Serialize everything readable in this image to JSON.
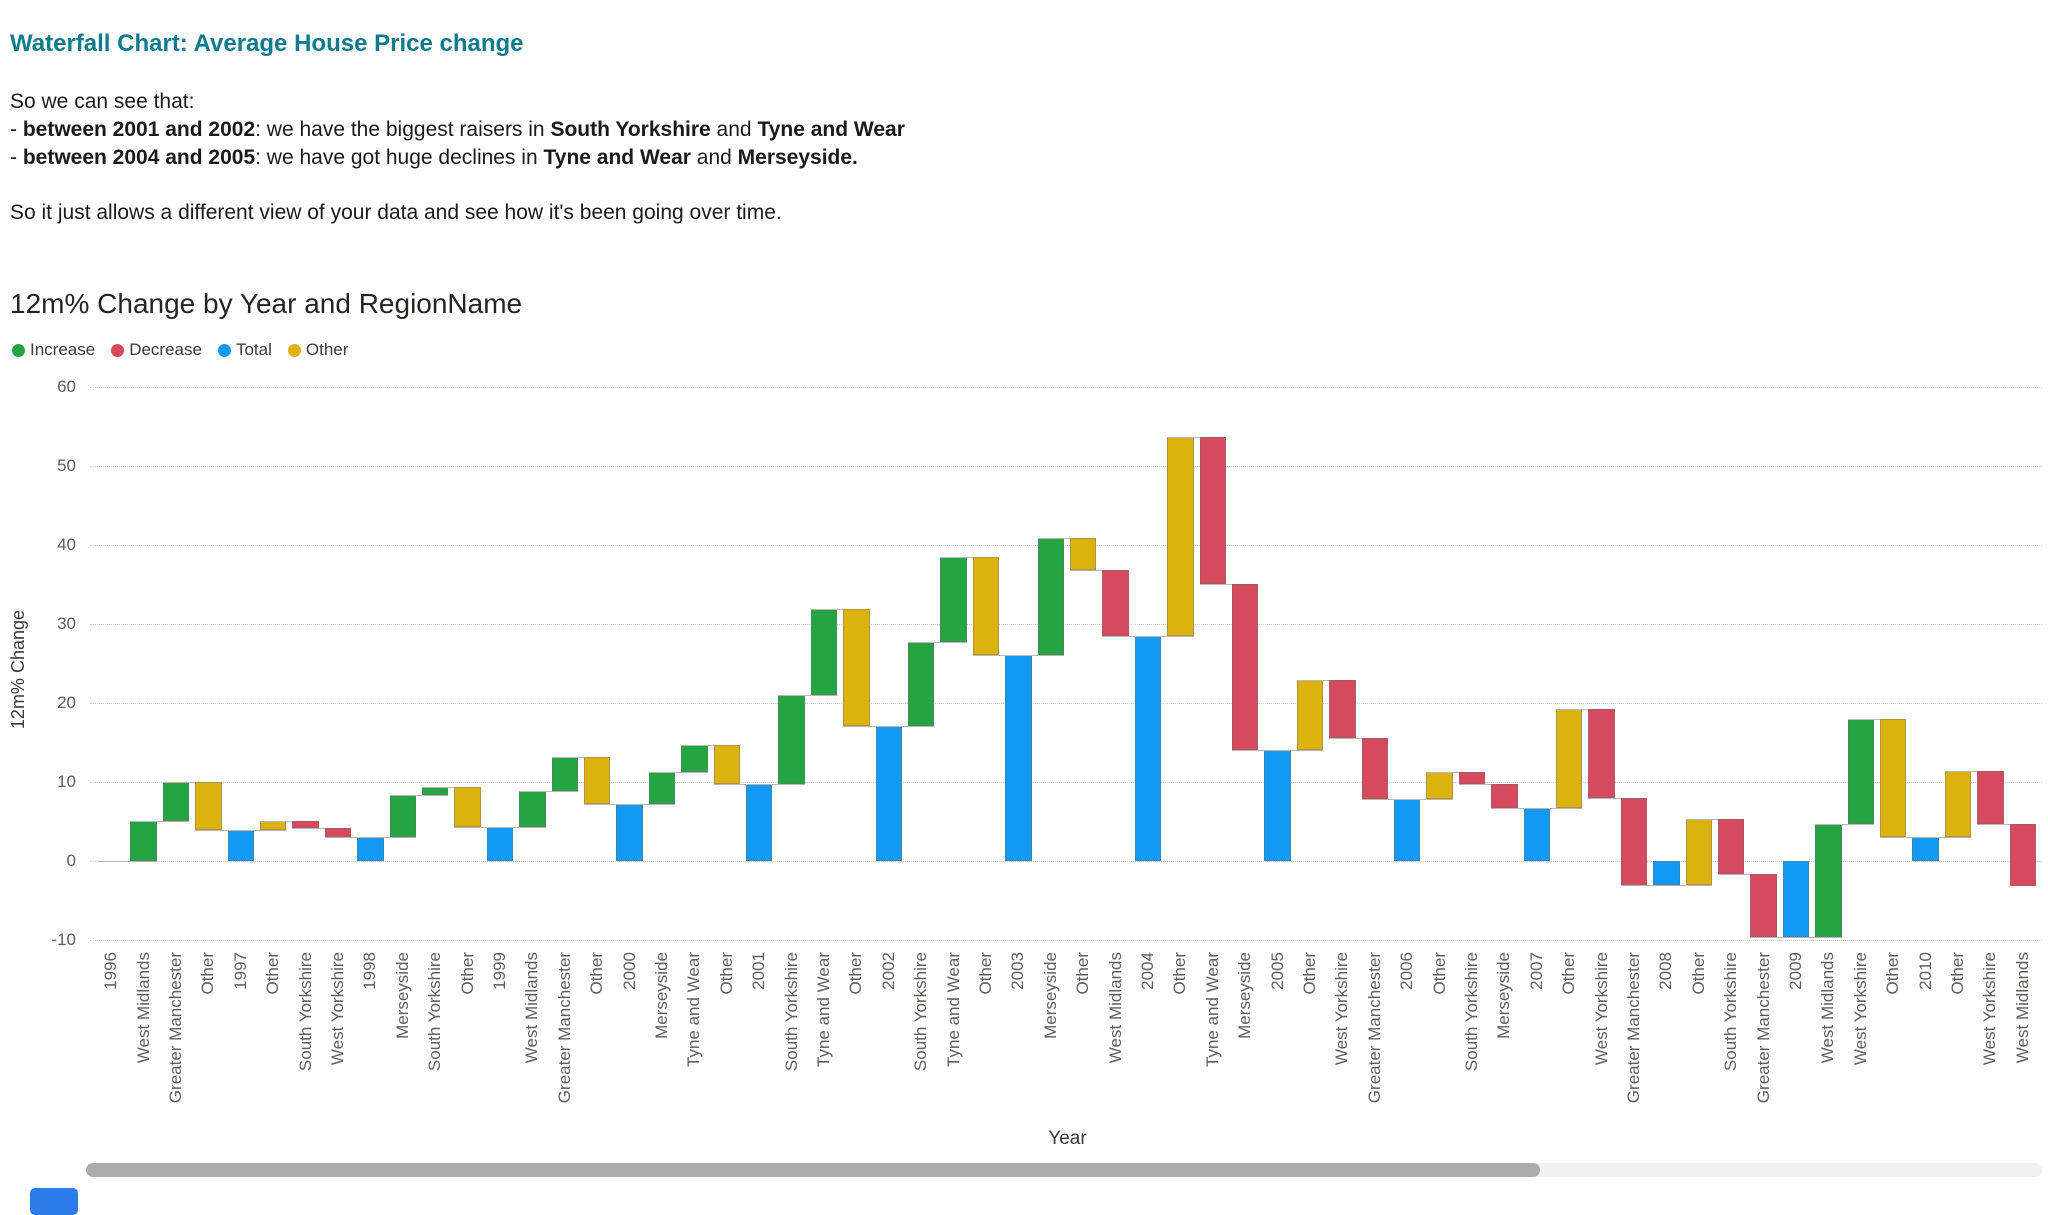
{
  "header": {
    "title": "Waterfall Chart: Average House Price change",
    "intro": "So we can see that:",
    "bullets": [
      [
        {
          "text": "- ",
          "bold": false
        },
        {
          "text": "between 2001 and 2002",
          "bold": true
        },
        {
          "text": ": we have the biggest raisers in ",
          "bold": false
        },
        {
          "text": "South Yorkshire",
          "bold": true
        },
        {
          "text": " and ",
          "bold": false
        },
        {
          "text": "Tyne and Wear",
          "bold": true
        }
      ],
      [
        {
          "text": "- ",
          "bold": false
        },
        {
          "text": "between 2004 and 2005",
          "bold": true
        },
        {
          "text": ": we have got huge declines in ",
          "bold": false
        },
        {
          "text": "Tyne and Wear",
          "bold": true
        },
        {
          "text": " and ",
          "bold": false
        },
        {
          "text": "Merseyside.",
          "bold": true
        }
      ]
    ],
    "outro": "So it just allows a different view of your data and see how it's been going over time."
  },
  "chart_data": {
    "type": "waterfall",
    "title": "12m% Change by Year and RegionName",
    "xlabel": "Year",
    "ylabel": "12m% Change",
    "ylim": [
      -10,
      60
    ],
    "y_ticks": [
      60,
      50,
      40,
      30,
      20,
      10,
      0,
      -10
    ],
    "grid": "dotted-horizontal",
    "legend_position": "top-left",
    "legend": [
      {
        "label": "Increase",
        "color": "#24A442"
      },
      {
        "label": "Decrease",
        "color": "#D7495D"
      },
      {
        "label": "Total",
        "color": "#1499F2"
      },
      {
        "label": "Other",
        "color": "#DCB20F"
      }
    ],
    "colors": {
      "increase": "#24A442",
      "decrease": "#D7495D",
      "total": "#1499F2",
      "other": "#DCB20F",
      "connector": "#B8B5B2"
    },
    "bars": [
      {
        "label": "1996",
        "role": "total",
        "value": 0.0
      },
      {
        "label": "West Midlands",
        "role": "increase",
        "value": 5.1
      },
      {
        "label": "Greater Manchester",
        "role": "increase",
        "value": 4.9
      },
      {
        "label": "Other",
        "role": "other",
        "value": -6.1
      },
      {
        "label": "1997",
        "role": "total",
        "value": 3.9
      },
      {
        "label": "Other",
        "role": "other",
        "value": 1.2
      },
      {
        "label": "South Yorkshire",
        "role": "decrease",
        "value": -0.9
      },
      {
        "label": "West Yorkshire",
        "role": "decrease",
        "value": -1.2
      },
      {
        "label": "1998",
        "role": "total",
        "value": 3.0
      },
      {
        "label": "Merseyside",
        "role": "increase",
        "value": 5.4
      },
      {
        "label": "South Yorkshire",
        "role": "increase",
        "value": 1.0
      },
      {
        "label": "Other",
        "role": "other",
        "value": -5.1
      },
      {
        "label": "1999",
        "role": "total",
        "value": 4.3
      },
      {
        "label": "West Midlands",
        "role": "increase",
        "value": 4.6
      },
      {
        "label": "Greater Manchester",
        "role": "increase",
        "value": 4.3
      },
      {
        "label": "Other",
        "role": "other",
        "value": -6.0
      },
      {
        "label": "2000",
        "role": "total",
        "value": 7.2
      },
      {
        "label": "Merseyside",
        "role": "increase",
        "value": 4.1
      },
      {
        "label": "Tyne and Wear",
        "role": "increase",
        "value": 3.4
      },
      {
        "label": "Other",
        "role": "other",
        "value": -5.0
      },
      {
        "label": "2001",
        "role": "total",
        "value": 9.7
      },
      {
        "label": "South Yorkshire",
        "role": "increase",
        "value": 11.3
      },
      {
        "label": "Tyne and Wear",
        "role": "increase",
        "value": 10.9
      },
      {
        "label": "Other",
        "role": "other",
        "value": -14.8
      },
      {
        "label": "2002",
        "role": "total",
        "value": 17.1
      },
      {
        "label": "South Yorkshire",
        "role": "increase",
        "value": 10.6
      },
      {
        "label": "Tyne and Wear",
        "role": "increase",
        "value": 10.8
      },
      {
        "label": "Other",
        "role": "other",
        "value": -12.4
      },
      {
        "label": "2003",
        "role": "total",
        "value": 26.1
      },
      {
        "label": "Merseyside",
        "role": "increase",
        "value": 14.8
      },
      {
        "label": "Other",
        "role": "other",
        "value": -4.1
      },
      {
        "label": "West Midlands",
        "role": "decrease",
        "value": -8.3
      },
      {
        "label": "2004",
        "role": "total",
        "value": 28.5
      },
      {
        "label": "Other",
        "role": "other",
        "value": 25.2
      },
      {
        "label": "Tyne and Wear",
        "role": "decrease",
        "value": -18.6
      },
      {
        "label": "Merseyside",
        "role": "decrease",
        "value": -21.0
      },
      {
        "label": "2005",
        "role": "total",
        "value": 14.1
      },
      {
        "label": "Other",
        "role": "other",
        "value": 8.8
      },
      {
        "label": "West Yorkshire",
        "role": "decrease",
        "value": -7.3
      },
      {
        "label": "Greater Manchester",
        "role": "decrease",
        "value": -7.7
      },
      {
        "label": "2006",
        "role": "total",
        "value": 7.9
      },
      {
        "label": "Other",
        "role": "other",
        "value": 3.4
      },
      {
        "label": "South Yorkshire",
        "role": "decrease",
        "value": -1.5
      },
      {
        "label": "Merseyside",
        "role": "decrease",
        "value": -3.1
      },
      {
        "label": "2007",
        "role": "total",
        "value": 6.7
      },
      {
        "label": "Other",
        "role": "other",
        "value": 12.6
      },
      {
        "label": "West Yorkshire",
        "role": "decrease",
        "value": -11.3
      },
      {
        "label": "Greater Manchester",
        "role": "decrease",
        "value": -11.0
      },
      {
        "label": "2008",
        "role": "total",
        "value": -3.0
      },
      {
        "label": "Other",
        "role": "other",
        "value": 8.3
      },
      {
        "label": "South Yorkshire",
        "role": "decrease",
        "value": -6.9
      },
      {
        "label": "Greater Manchester",
        "role": "decrease",
        "value": -8.0
      },
      {
        "label": "2009",
        "role": "total",
        "value": -9.6
      },
      {
        "label": "West Midlands",
        "role": "increase",
        "value": 14.3
      },
      {
        "label": "West Yorkshire",
        "role": "increase",
        "value": 13.3
      },
      {
        "label": "Other",
        "role": "other",
        "value": -15.0
      },
      {
        "label": "2010",
        "role": "total",
        "value": 3.0
      },
      {
        "label": "Other",
        "role": "other",
        "value": 8.4
      },
      {
        "label": "West Yorkshire",
        "role": "decrease",
        "value": -6.7
      },
      {
        "label": "West Midlands",
        "role": "decrease",
        "value": -7.9
      }
    ]
  }
}
